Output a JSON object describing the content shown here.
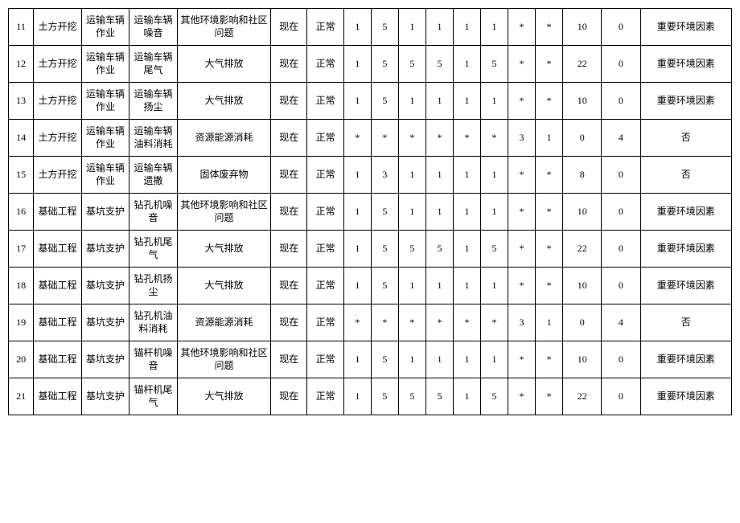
{
  "table": {
    "columns": [
      {
        "key": "idx",
        "class": "col-idx"
      },
      {
        "key": "cat",
        "class": "col-cat"
      },
      {
        "key": "sub",
        "class": "col-sub"
      },
      {
        "key": "factor",
        "class": "col-factor"
      },
      {
        "key": "impact",
        "class": "col-impact"
      },
      {
        "key": "time",
        "class": "col-time"
      },
      {
        "key": "state",
        "class": "col-state"
      },
      {
        "key": "n1",
        "class": "col-n"
      },
      {
        "key": "n2",
        "class": "col-n"
      },
      {
        "key": "n3",
        "class": "col-n"
      },
      {
        "key": "n4",
        "class": "col-n"
      },
      {
        "key": "n5",
        "class": "col-n"
      },
      {
        "key": "n6",
        "class": "col-n"
      },
      {
        "key": "n7",
        "class": "col-n"
      },
      {
        "key": "n8",
        "class": "col-n"
      },
      {
        "key": "score1",
        "class": "col-score"
      },
      {
        "key": "score2",
        "class": "col-score"
      },
      {
        "key": "eval",
        "class": "col-eval"
      }
    ],
    "rows": [
      {
        "idx": "11",
        "cat": "土方开挖",
        "sub": "运输车辆作业",
        "factor": "运输车辆噪音",
        "impact": "其他环境影响和社区问题",
        "time": "现在",
        "state": "正常",
        "n1": "1",
        "n2": "5",
        "n3": "1",
        "n4": "1",
        "n5": "1",
        "n6": "1",
        "n7": "*",
        "n8": "*",
        "score1": "10",
        "score2": "0",
        "eval": "重要环境因素"
      },
      {
        "idx": "12",
        "cat": "土方开挖",
        "sub": "运输车辆作业",
        "factor": "运输车辆尾气",
        "impact": "大气排放",
        "time": "现在",
        "state": "正常",
        "n1": "1",
        "n2": "5",
        "n3": "5",
        "n4": "5",
        "n5": "1",
        "n6": "5",
        "n7": "*",
        "n8": "*",
        "score1": "22",
        "score2": "0",
        "eval": "重要环境因素"
      },
      {
        "idx": "13",
        "cat": "土方开挖",
        "sub": "运输车辆作业",
        "factor": "运输车辆扬尘",
        "impact": "大气排放",
        "time": "现在",
        "state": "正常",
        "n1": "1",
        "n2": "5",
        "n3": "1",
        "n4": "1",
        "n5": "1",
        "n6": "1",
        "n7": "*",
        "n8": "*",
        "score1": "10",
        "score2": "0",
        "eval": "重要环境因素"
      },
      {
        "idx": "14",
        "cat": "土方开挖",
        "sub": "运输车辆作业",
        "factor": "运输车辆油料消耗",
        "impact": "资源能源消耗",
        "time": "现在",
        "state": "正常",
        "n1": "*",
        "n2": "*",
        "n3": "*",
        "n4": "*",
        "n5": "*",
        "n6": "*",
        "n7": "3",
        "n8": "1",
        "score1": "0",
        "score2": "4",
        "eval": "否"
      },
      {
        "idx": "15",
        "cat": "土方开挖",
        "sub": "运输车辆作业",
        "factor": "运输车辆遗撒",
        "impact": "固体废弃物",
        "time": "现在",
        "state": "正常",
        "n1": "1",
        "n2": "3",
        "n3": "1",
        "n4": "1",
        "n5": "1",
        "n6": "1",
        "n7": "*",
        "n8": "*",
        "score1": "8",
        "score2": "0",
        "eval": "否"
      },
      {
        "idx": "16",
        "cat": "基础工程",
        "sub": "基坑支护",
        "factor": "钻孔机噪音",
        "impact": "其他环境影响和社区问题",
        "time": "现在",
        "state": "正常",
        "n1": "1",
        "n2": "5",
        "n3": "1",
        "n4": "1",
        "n5": "1",
        "n6": "1",
        "n7": "*",
        "n8": "*",
        "score1": "10",
        "score2": "0",
        "eval": "重要环境因素"
      },
      {
        "idx": "17",
        "cat": "基础工程",
        "sub": "基坑支护",
        "factor": "钻孔机尾气",
        "impact": "大气排放",
        "time": "现在",
        "state": "正常",
        "n1": "1",
        "n2": "5",
        "n3": "5",
        "n4": "5",
        "n5": "1",
        "n6": "5",
        "n7": "*",
        "n8": "*",
        "score1": "22",
        "score2": "0",
        "eval": "重要环境因素"
      },
      {
        "idx": "18",
        "cat": "基础工程",
        "sub": "基坑支护",
        "factor": "钻孔机扬尘",
        "impact": "大气排放",
        "time": "现在",
        "state": "正常",
        "n1": "1",
        "n2": "5",
        "n3": "1",
        "n4": "1",
        "n5": "1",
        "n6": "1",
        "n7": "*",
        "n8": "*",
        "score1": "10",
        "score2": "0",
        "eval": "重要环境因素"
      },
      {
        "idx": "19",
        "cat": "基础工程",
        "sub": "基坑支护",
        "factor": "钻孔机油料消耗",
        "impact": "资源能源消耗",
        "time": "现在",
        "state": "正常",
        "n1": "*",
        "n2": "*",
        "n3": "*",
        "n4": "*",
        "n5": "*",
        "n6": "*",
        "n7": "3",
        "n8": "1",
        "score1": "0",
        "score2": "4",
        "eval": "否"
      },
      {
        "idx": "20",
        "cat": "基础工程",
        "sub": "基坑支护",
        "factor": "锚杆机噪音",
        "impact": "其他环境影响和社区问题",
        "time": "现在",
        "state": "正常",
        "n1": "1",
        "n2": "5",
        "n3": "1",
        "n4": "1",
        "n5": "1",
        "n6": "1",
        "n7": "*",
        "n8": "*",
        "score1": "10",
        "score2": "0",
        "eval": "重要环境因素"
      },
      {
        "idx": "21",
        "cat": "基础工程",
        "sub": "基坑支护",
        "factor": "锚杆机尾气",
        "impact": "大气排放",
        "time": "现在",
        "state": "正常",
        "n1": "1",
        "n2": "5",
        "n3": "5",
        "n4": "5",
        "n5": "1",
        "n6": "5",
        "n7": "*",
        "n8": "*",
        "score1": "22",
        "score2": "0",
        "eval": "重要环境因素"
      }
    ]
  }
}
